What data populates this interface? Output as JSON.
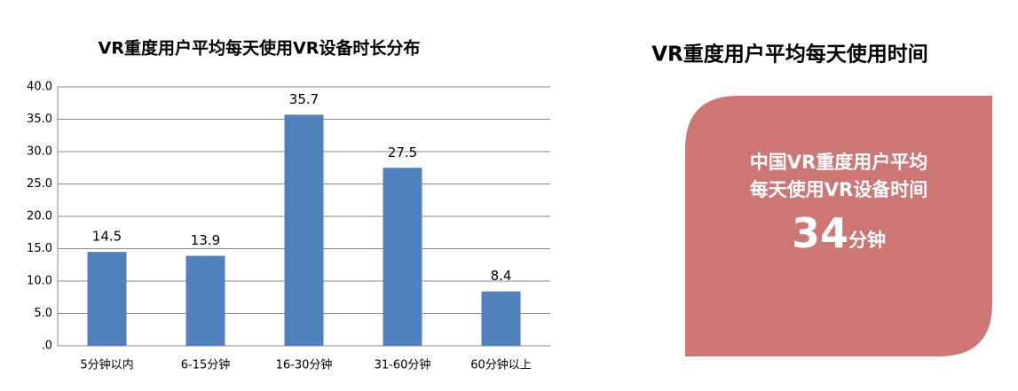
{
  "chart_data": {
    "type": "bar",
    "title": "VR重度用户平均每天使用VR设备时长分布",
    "categories": [
      "5分钟以内",
      "6-15分钟",
      "16-30分钟",
      "31-60分钟",
      "60分钟以上"
    ],
    "values": [
      14.5,
      13.9,
      35.7,
      27.5,
      8.4
    ],
    "color": "#4f81bd",
    "ylim": [
      0,
      40
    ],
    "yticks": [
      {
        "value": 0,
        "label": ".0"
      },
      {
        "value": 5,
        "label": "5.0"
      },
      {
        "value": 10,
        "label": "10.0"
      },
      {
        "value": 15,
        "label": "15.0"
      },
      {
        "value": 20,
        "label": "20.0"
      },
      {
        "value": 25,
        "label": "25.0"
      },
      {
        "value": 30,
        "label": "30.0"
      },
      {
        "value": 35,
        "label": "35.0"
      },
      {
        "value": 40,
        "label": "40.0"
      }
    ],
    "grid": true
  },
  "summary": {
    "title": "VR重度用户平均每天使用时间",
    "lines": [
      "中国VR重度用户平均",
      "每天使用VR设备时间"
    ],
    "value": 34,
    "unit": "分钟",
    "color": "#cd7673"
  }
}
